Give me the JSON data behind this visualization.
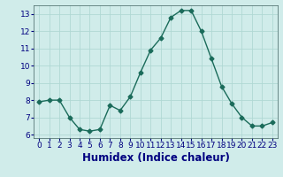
{
  "x": [
    0,
    1,
    2,
    3,
    4,
    5,
    6,
    7,
    8,
    9,
    10,
    11,
    12,
    13,
    14,
    15,
    16,
    17,
    18,
    19,
    20,
    21,
    22,
    23
  ],
  "y": [
    7.9,
    8.0,
    8.0,
    7.0,
    6.3,
    6.2,
    6.3,
    7.7,
    7.4,
    8.2,
    9.6,
    10.9,
    11.6,
    12.8,
    13.2,
    13.2,
    12.0,
    10.4,
    8.8,
    7.8,
    7.0,
    6.5,
    6.5,
    6.7
  ],
  "line_color": "#1a6b5a",
  "marker": "D",
  "marker_size": 2.5,
  "bg_color": "#d0ecea",
  "grid_color": "#b0d8d4",
  "xlabel": "Humidex (Indice chaleur)",
  "xlim": [
    -0.5,
    23.5
  ],
  "ylim": [
    5.8,
    13.5
  ],
  "yticks": [
    6,
    7,
    8,
    9,
    10,
    11,
    12,
    13
  ],
  "xticks": [
    0,
    1,
    2,
    3,
    4,
    5,
    6,
    7,
    8,
    9,
    10,
    11,
    12,
    13,
    14,
    15,
    16,
    17,
    18,
    19,
    20,
    21,
    22,
    23
  ],
  "tick_label_fontsize": 6.5,
  "xlabel_fontsize": 8.5,
  "label_color": "#000080",
  "spine_color": "#406060"
}
